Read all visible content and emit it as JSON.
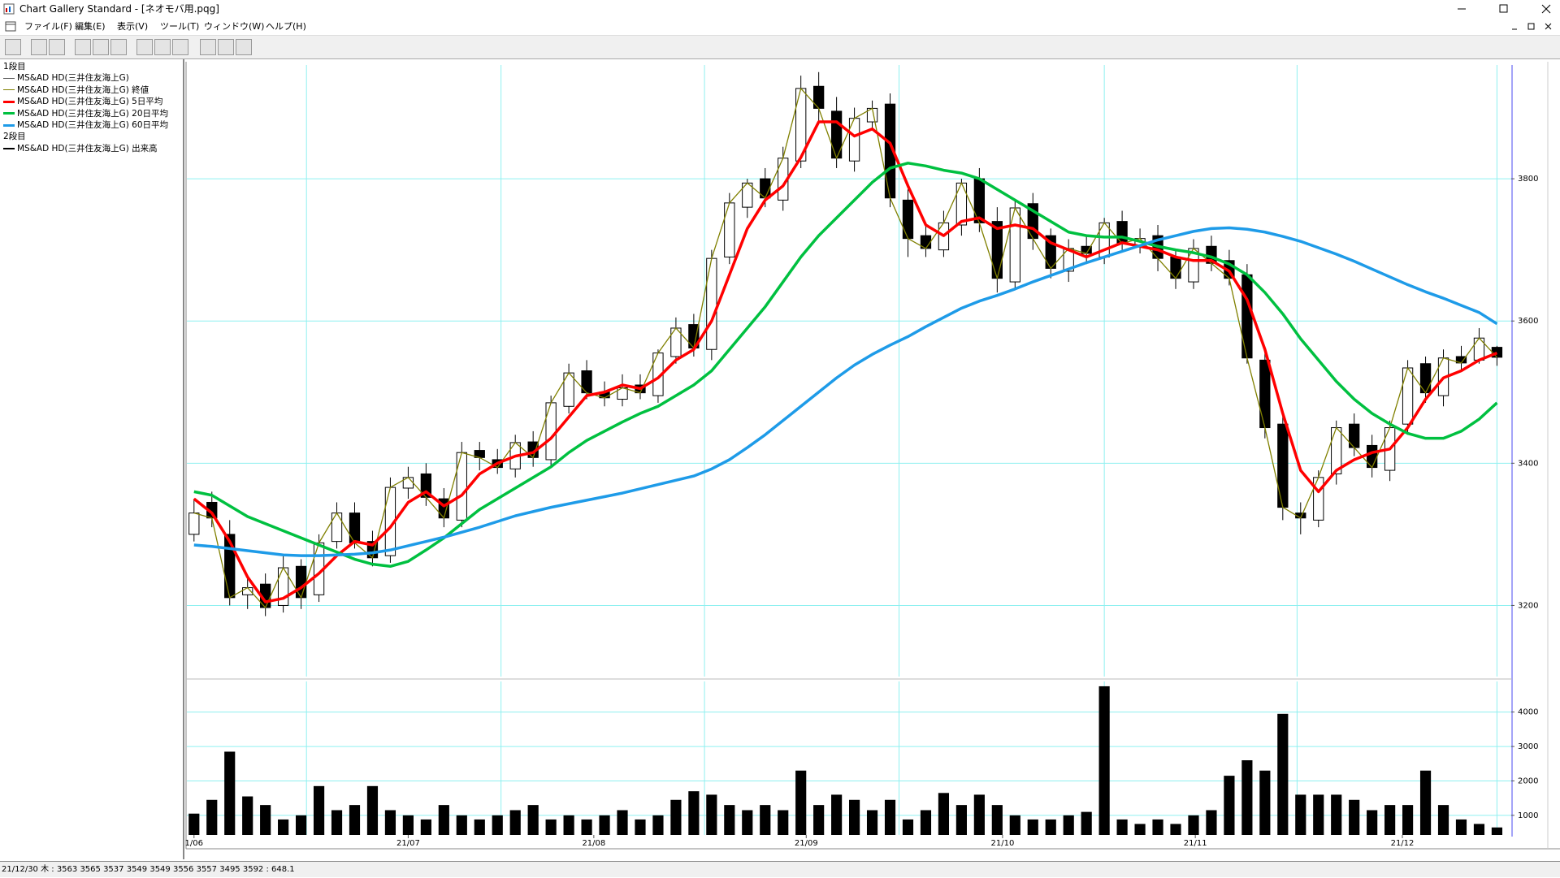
{
  "window": {
    "title": "Chart Gallery Standard - [ネオモバ用.pqg]",
    "menu": [
      "ファイル(F)",
      "編集(E)",
      "表示(V)",
      "ツール(T)",
      "ウィンドウ(W)",
      "ヘルプ(H)"
    ],
    "status": "21/12/30 木 : 3563 3565 3537 3549  3549 3556 3557 3495 3592 : 648.1"
  },
  "chart_data": [
    {
      "type": "candlestick",
      "legend_heading": "1段目",
      "name": "MS&AD HD(三井住友海上G)",
      "color": "#000000",
      "open": [
        3300,
        3345,
        3300,
        3215,
        3230,
        3200,
        3255,
        3215,
        3290,
        3330,
        3290,
        3270,
        3365,
        3385,
        3350,
        3320,
        3418,
        3405,
        3392,
        3430,
        3405,
        3480,
        3530,
        3500,
        3490,
        3510,
        3495,
        3550,
        3595,
        3560,
        3690,
        3760,
        3800,
        3770,
        3825,
        3930,
        3895,
        3825,
        3880,
        3905,
        3770,
        3720,
        3700,
        3735,
        3800,
        3740,
        3655,
        3765,
        3720,
        3670,
        3705,
        3690,
        3740,
        3705,
        3720,
        3690,
        3655,
        3705,
        3685,
        3665,
        3545,
        3455,
        3330,
        3320,
        3385,
        3455,
        3425,
        3390,
        3455,
        3540,
        3495,
        3550,
        3545,
        3563
      ],
      "high": [
        3350,
        3360,
        3320,
        3240,
        3245,
        3270,
        3265,
        3300,
        3345,
        3345,
        3305,
        3380,
        3395,
        3400,
        3365,
        3430,
        3430,
        3420,
        3440,
        3445,
        3495,
        3540,
        3545,
        3515,
        3525,
        3525,
        3560,
        3605,
        3610,
        3700,
        3780,
        3800,
        3815,
        3845,
        3945,
        3950,
        3915,
        3900,
        3910,
        3920,
        3785,
        3735,
        3755,
        3800,
        3815,
        3760,
        3770,
        3780,
        3730,
        3715,
        3720,
        3745,
        3755,
        3730,
        3735,
        3700,
        3715,
        3720,
        3700,
        3680,
        3560,
        3470,
        3345,
        3390,
        3460,
        3470,
        3440,
        3460,
        3545,
        3550,
        3560,
        3565,
        3590,
        3565
      ],
      "low": [
        3290,
        3310,
        3200,
        3195,
        3185,
        3190,
        3195,
        3205,
        3280,
        3280,
        3255,
        3260,
        3350,
        3340,
        3310,
        3310,
        3390,
        3385,
        3380,
        3395,
        3395,
        3470,
        3490,
        3480,
        3480,
        3490,
        3485,
        3540,
        3550,
        3545,
        3680,
        3745,
        3760,
        3755,
        3815,
        3880,
        3815,
        3810,
        3870,
        3760,
        3690,
        3690,
        3690,
        3720,
        3725,
        3640,
        3645,
        3700,
        3660,
        3655,
        3680,
        3680,
        3700,
        3695,
        3670,
        3645,
        3645,
        3670,
        3650,
        3540,
        3435,
        3320,
        3300,
        3310,
        3370,
        3410,
        3380,
        3375,
        3440,
        3485,
        3480,
        3530,
        3540,
        3537
      ],
      "close": [
        3330,
        3323,
        3211,
        3225,
        3197,
        3253,
        3211,
        3288,
        3330,
        3288,
        3267,
        3366,
        3380,
        3352,
        3323,
        3415,
        3408,
        3394,
        3429,
        3408,
        3485,
        3527,
        3499,
        3492,
        3506,
        3499,
        3555,
        3590,
        3562,
        3688,
        3766,
        3794,
        3773,
        3829,
        3927,
        3899,
        3829,
        3885,
        3899,
        3773,
        3716,
        3702,
        3738,
        3794,
        3738,
        3660,
        3759,
        3716,
        3674,
        3702,
        3695,
        3738,
        3709,
        3716,
        3688,
        3660,
        3702,
        3681,
        3660,
        3548,
        3450,
        3338,
        3323,
        3380,
        3450,
        3422,
        3394,
        3450,
        3534,
        3499,
        3548,
        3541,
        3576,
        3549
      ],
      "close_line": {
        "name": "MS&AD HD(三井住友海上G) 終値",
        "color": "#808000"
      },
      "series": [
        {
          "name": "MS&AD HD(三井住友海上G) 5日平均",
          "color": "#ff0000",
          "values": [
            3350,
            3330,
            3290,
            3240,
            3205,
            3210,
            3225,
            3245,
            3270,
            3290,
            3285,
            3310,
            3345,
            3360,
            3340,
            3355,
            3385,
            3400,
            3410,
            3415,
            3435,
            3465,
            3495,
            3500,
            3510,
            3505,
            3520,
            3545,
            3560,
            3600,
            3665,
            3730,
            3770,
            3790,
            3830,
            3880,
            3880,
            3860,
            3870,
            3850,
            3790,
            3735,
            3720,
            3740,
            3745,
            3730,
            3735,
            3730,
            3710,
            3700,
            3690,
            3700,
            3710,
            3705,
            3700,
            3690,
            3685,
            3685,
            3670,
            3630,
            3560,
            3470,
            3390,
            3360,
            3390,
            3405,
            3415,
            3420,
            3450,
            3490,
            3520,
            3530,
            3545,
            3555
          ]
        },
        {
          "name": "MS&AD HD(三井住友海上G) 20日平均",
          "color": "#00c040",
          "values": [
            3360,
            3355,
            3340,
            3325,
            3315,
            3305,
            3295,
            3285,
            3275,
            3265,
            3258,
            3255,
            3262,
            3278,
            3295,
            3315,
            3335,
            3350,
            3365,
            3380,
            3395,
            3415,
            3432,
            3445,
            3458,
            3470,
            3480,
            3495,
            3510,
            3530,
            3560,
            3590,
            3620,
            3655,
            3690,
            3720,
            3745,
            3770,
            3795,
            3815,
            3822,
            3818,
            3812,
            3808,
            3800,
            3785,
            3770,
            3755,
            3740,
            3725,
            3720,
            3718,
            3718,
            3712,
            3705,
            3700,
            3696,
            3690,
            3680,
            3665,
            3640,
            3610,
            3575,
            3545,
            3515,
            3490,
            3470,
            3455,
            3442,
            3435,
            3435,
            3445,
            3462,
            3485
          ]
        },
        {
          "name": "MS&AD HD(三井住友海上G) 60日平均",
          "color": "#1e9be8",
          "values": [
            3285,
            3283,
            3280,
            3277,
            3274,
            3271,
            3270,
            3270,
            3271,
            3272,
            3274,
            3278,
            3284,
            3290,
            3296,
            3303,
            3310,
            3318,
            3326,
            3332,
            3338,
            3343,
            3348,
            3353,
            3358,
            3364,
            3370,
            3376,
            3382,
            3392,
            3405,
            3422,
            3440,
            3460,
            3480,
            3500,
            3520,
            3538,
            3553,
            3566,
            3578,
            3592,
            3605,
            3618,
            3628,
            3636,
            3645,
            3655,
            3664,
            3673,
            3682,
            3690,
            3698,
            3706,
            3714,
            3720,
            3726,
            3730,
            3731,
            3729,
            3725,
            3719,
            3712,
            3703,
            3694,
            3684,
            3673,
            3662,
            3651,
            3641,
            3632,
            3622,
            3612,
            3596
          ]
        }
      ],
      "xlim": [
        -0.4,
        73.8
      ],
      "xgrid": [
        6.3,
        17.2,
        28.6,
        39.5,
        51,
        61.8,
        73
      ],
      "ylim": [
        3100,
        3960
      ],
      "yticks": [
        3200,
        3400,
        3600,
        3800
      ],
      "grid": true
    },
    {
      "type": "bar",
      "legend_heading": "2段目",
      "name": "MS&AD HD(三井住友海上G) 出来高",
      "color": "#000000",
      "values": [
        1050,
        1450,
        2850,
        1550,
        1300,
        880,
        1000,
        1850,
        1150,
        1300,
        1850,
        1150,
        1000,
        880,
        1300,
        1000,
        880,
        1000,
        1150,
        1300,
        880,
        1000,
        880,
        1000,
        1150,
        880,
        1000,
        1450,
        1700,
        1600,
        1300,
        1150,
        1300,
        1150,
        2300,
        1300,
        1600,
        1450,
        1150,
        1450,
        880,
        1150,
        1650,
        1300,
        1600,
        1300,
        1000,
        880,
        880,
        1000,
        1100,
        4750,
        880,
        750,
        880,
        750,
        1000,
        1150,
        2150,
        2600,
        2300,
        3950,
        1600,
        1600,
        1600,
        1450,
        1150,
        1300,
        1300,
        2300,
        1300,
        880,
        750,
        648.1
      ],
      "xlim": [
        -0.4,
        73.8
      ],
      "xticks": [
        {
          "value": 0,
          "label": "1/06"
        },
        {
          "value": 12,
          "label": "21/07"
        },
        {
          "value": 22.4,
          "label": "21/08"
        },
        {
          "value": 34.3,
          "label": "21/09"
        },
        {
          "value": 45.3,
          "label": "21/10"
        },
        {
          "value": 56.1,
          "label": "21/11"
        },
        {
          "value": 67.7,
          "label": "21/12"
        }
      ],
      "ylim": [
        430,
        4890
      ],
      "yticks": [
        1000,
        2000,
        3000,
        4000
      ],
      "grid": true
    }
  ]
}
